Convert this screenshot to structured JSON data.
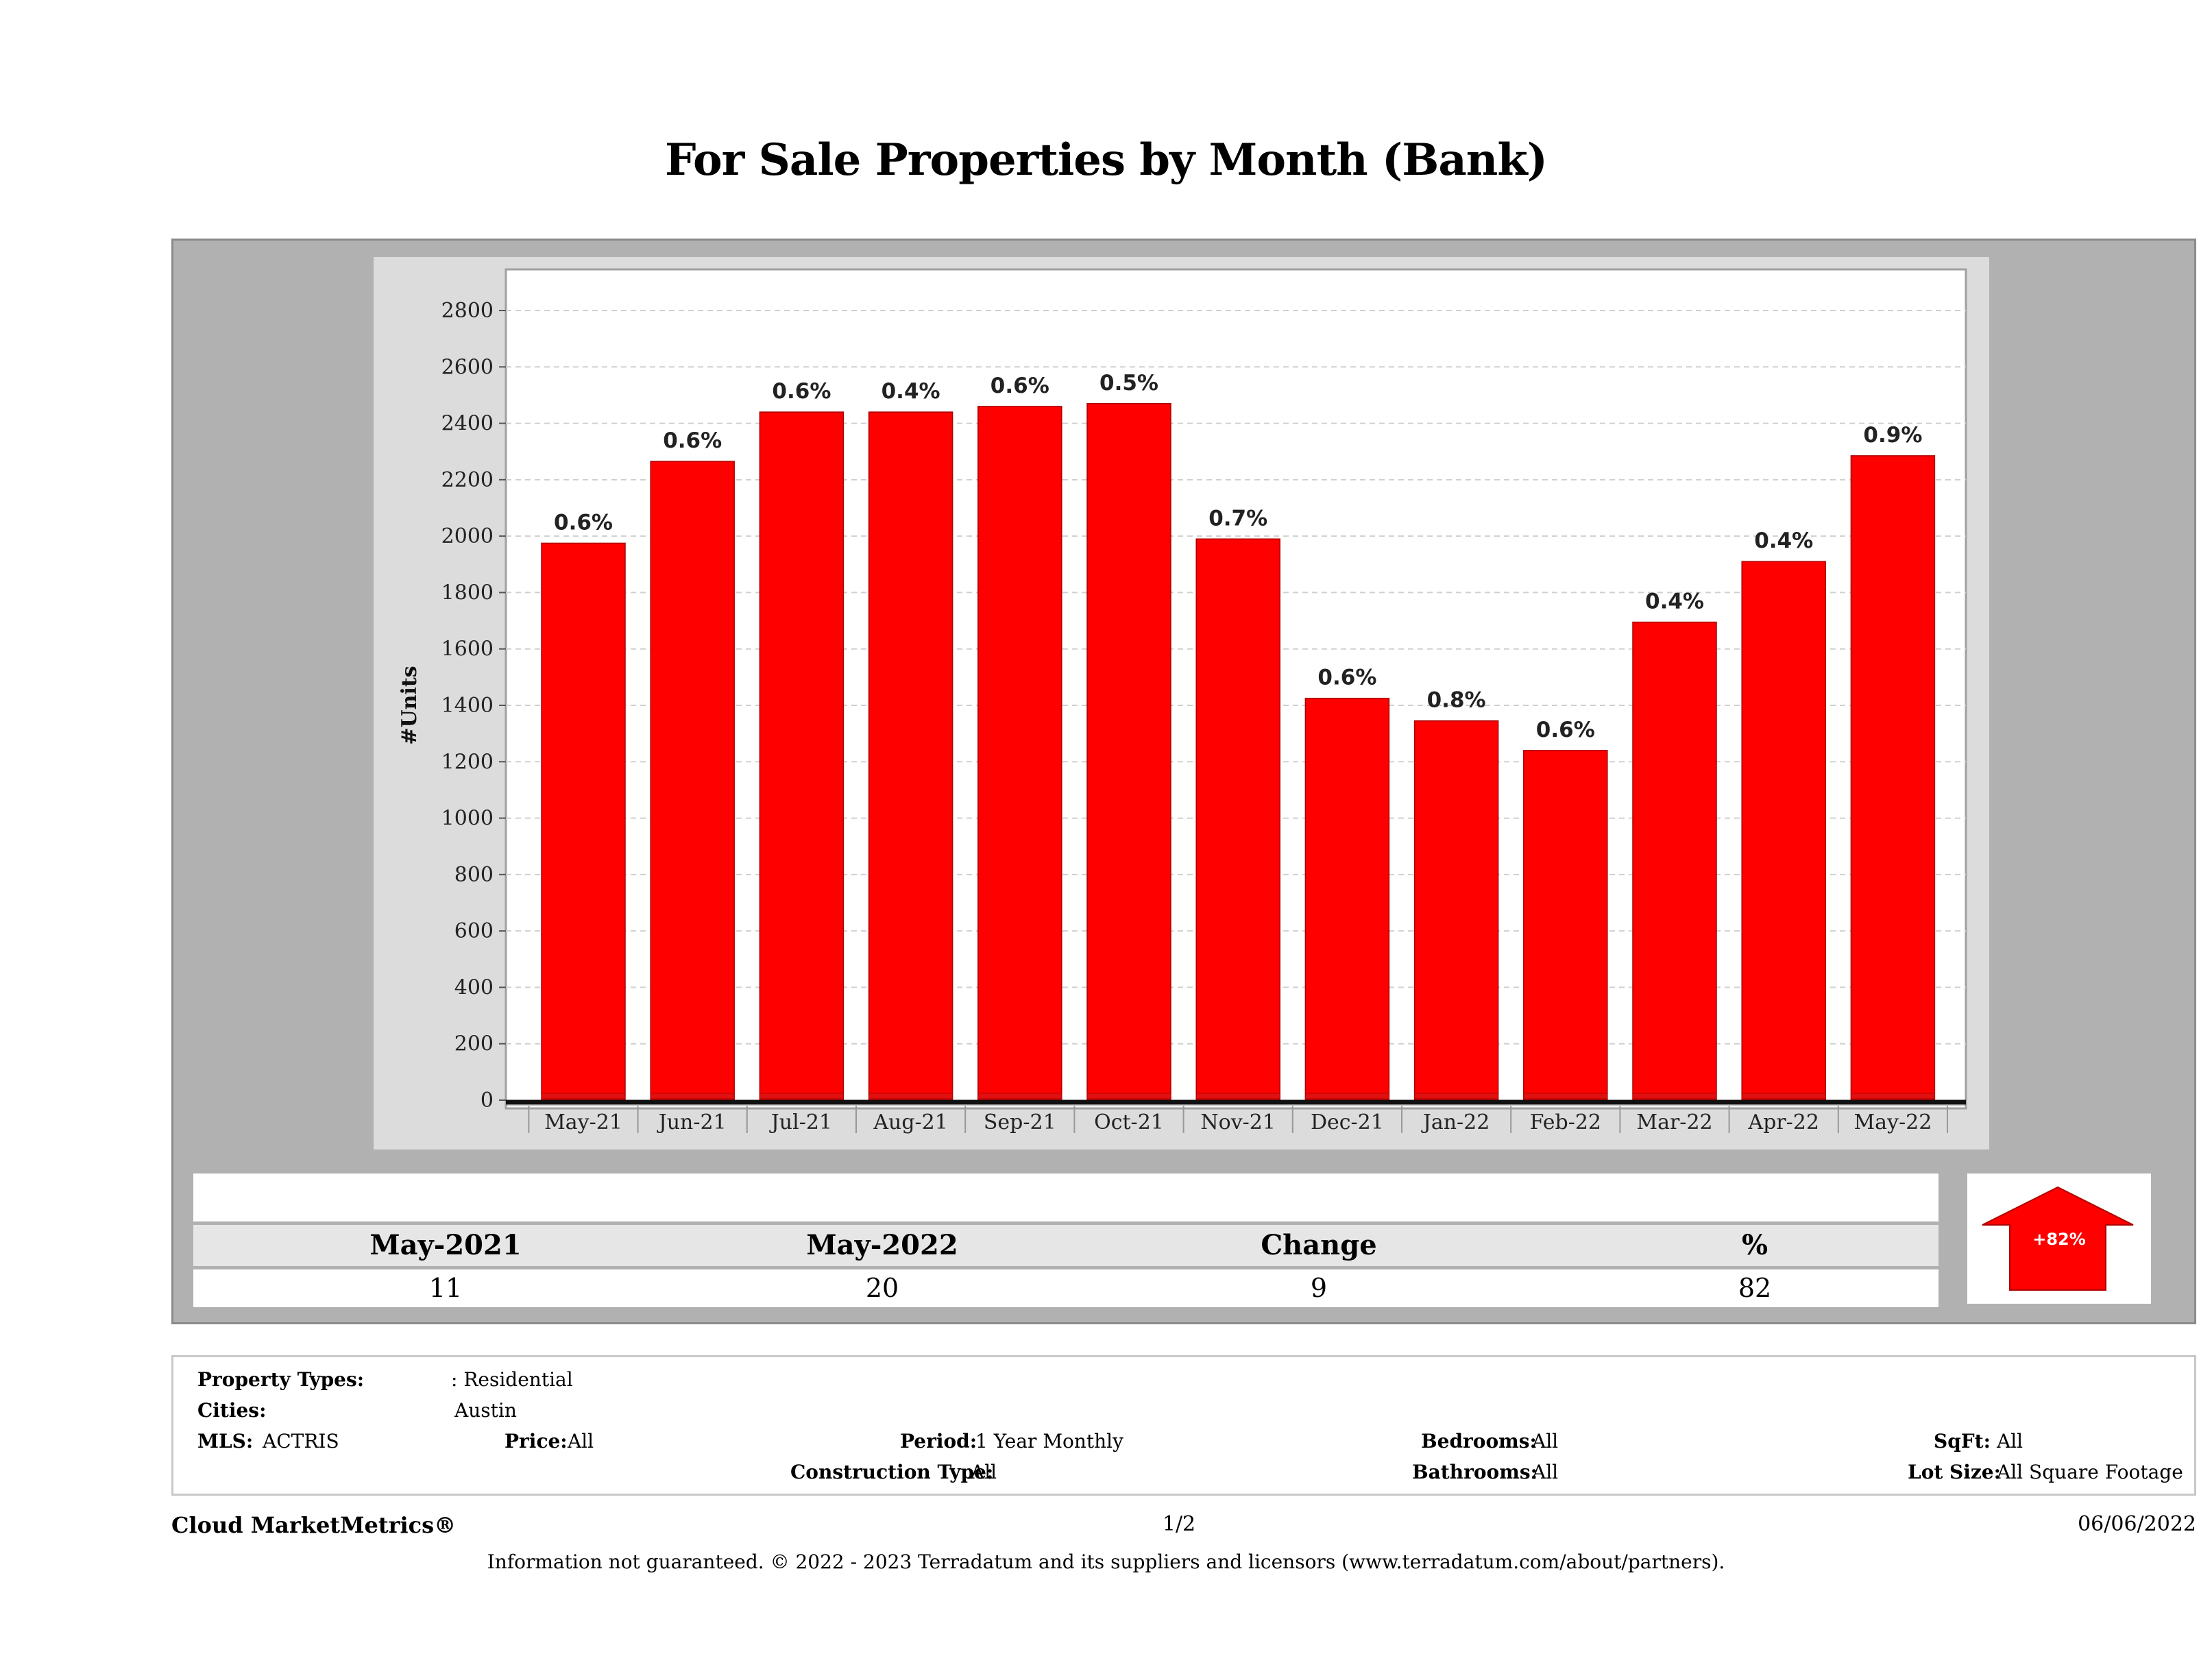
{
  "title": "For Sale Properties by Month (Bank)",
  "chart_data": {
    "type": "bar",
    "title": "For Sale Properties by Month (Bank)",
    "ylabel": "#Units",
    "xlabel": "",
    "ylim": [
      0,
      2800
    ],
    "yticks": [
      0,
      200,
      400,
      600,
      800,
      1000,
      1200,
      1400,
      1600,
      1800,
      2000,
      2200,
      2400,
      2600,
      2800
    ],
    "grid": true,
    "categories": [
      "May-21",
      "Jun-21",
      "Jul-21",
      "Aug-21",
      "Sep-21",
      "Oct-21",
      "Nov-21",
      "Dec-21",
      "Jan-22",
      "Feb-22",
      "Mar-22",
      "Apr-22",
      "May-22"
    ],
    "values": [
      1975,
      2265,
      2440,
      2440,
      2460,
      2470,
      1990,
      1425,
      1345,
      1240,
      1695,
      1910,
      2285
    ],
    "data_labels": [
      "0.6%",
      "0.6%",
      "0.6%",
      "0.4%",
      "0.6%",
      "0.5%",
      "0.7%",
      "0.6%",
      "0.8%",
      "0.6%",
      "0.4%",
      "0.4%",
      "0.9%"
    ],
    "bar_color": "#ff0000"
  },
  "summary": {
    "headers": [
      "May-2021",
      "May-2022",
      "Change",
      "%"
    ],
    "values": [
      "11",
      "20",
      "9",
      "82"
    ],
    "badge": "+82%",
    "badge_color": "#ff0000"
  },
  "criteria": {
    "property_types_label": "Property Types:",
    "property_types_value": ": Residential",
    "cities_label": "Cities:",
    "cities_value": "Austin",
    "mls_label": "MLS:",
    "mls_value": "ACTRIS",
    "price_label": "Price:",
    "price_value": "All",
    "period_label": "Period:",
    "period_value": "1 Year Monthly",
    "construction_label": "Construction Type:",
    "construction_value": "All",
    "bedrooms_label": "Bedrooms:",
    "bedrooms_value": "All",
    "bathrooms_label": "Bathrooms:",
    "bathrooms_value": "All",
    "sqft_label": "SqFt:",
    "sqft_value": "All",
    "lotsize_label": "Lot Size:",
    "lotsize_value": "All Square Footage"
  },
  "footer": {
    "brand": "Cloud MarketMetrics®",
    "page": "1/2",
    "date": "06/06/2022",
    "disclaimer": "Information not guaranteed. © 2022 - 2023 Terradatum and its suppliers and licensors (www.terradatum.com/about/partners)."
  }
}
